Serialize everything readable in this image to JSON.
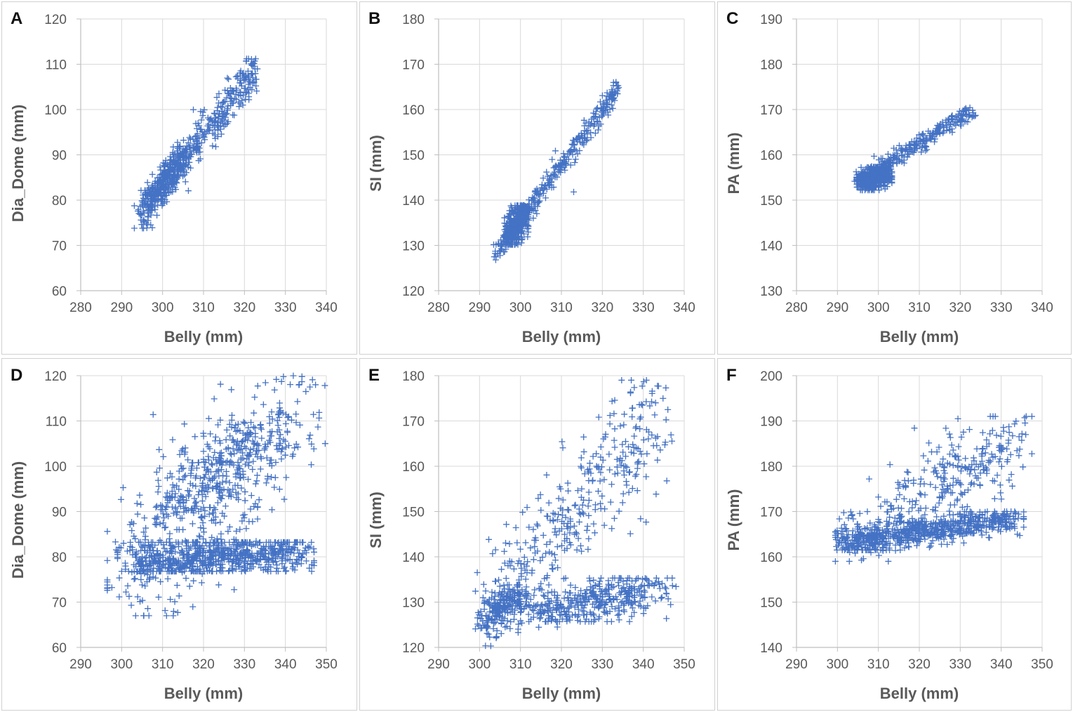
{
  "figure": {
    "marker": "+",
    "marker_color": "#4472C4",
    "grid_color": "#d9d9d9",
    "axis_color": "#bfbfbf"
  },
  "chart_data": [
    {
      "panel": "A",
      "type": "scatter",
      "xlabel": "Belly (mm)",
      "ylabel": "Dia_Dome (mm)",
      "xlim": [
        280,
        340
      ],
      "ylim": [
        60,
        120
      ],
      "xticks": [
        280,
        290,
        300,
        310,
        320,
        330,
        340
      ],
      "yticks": [
        60,
        70,
        80,
        90,
        100,
        110,
        120
      ],
      "clusters": [
        {
          "x0": 294,
          "y0": 76,
          "x1": 323,
          "y1": 109,
          "n": 380,
          "sx": 0.9,
          "sy": 2.2
        },
        {
          "x0": 296,
          "y0": 79,
          "x1": 305,
          "y1": 90,
          "n": 280,
          "sx": 0.8,
          "sy": 1.8
        }
      ],
      "points": [
        [
          313,
          91.8
        ]
      ]
    },
    {
      "panel": "B",
      "type": "scatter",
      "xlabel": "Belly (mm)",
      "ylabel": "SI (mm)",
      "xlim": [
        280,
        340
      ],
      "ylim": [
        120,
        180
      ],
      "xticks": [
        280,
        290,
        300,
        310,
        320,
        330,
        340
      ],
      "yticks": [
        120,
        130,
        140,
        150,
        160,
        170,
        180
      ],
      "clusters": [
        {
          "x0": 294,
          "y0": 128,
          "x1": 324,
          "y1": 165,
          "n": 330,
          "sx": 0.6,
          "sy": 1.2
        },
        {
          "x0": 297,
          "y0": 132,
          "x1": 301,
          "y1": 137,
          "n": 380,
          "sx": 0.9,
          "sy": 1.8
        }
      ],
      "points": [
        [
          313,
          141.8
        ]
      ]
    },
    {
      "panel": "C",
      "type": "scatter",
      "xlabel": "Belly (mm)",
      "ylabel": "PA (mm)",
      "xlim": [
        280,
        340
      ],
      "ylim": [
        130,
        190
      ],
      "xticks": [
        280,
        290,
        300,
        310,
        320,
        330,
        340
      ],
      "yticks": [
        130,
        140,
        150,
        160,
        170,
        180,
        190
      ],
      "clusters": [
        {
          "x0": 295,
          "y0": 154,
          "x1": 323,
          "y1": 170,
          "n": 300,
          "sx": 0.8,
          "sy": 0.9
        },
        {
          "x0": 296,
          "y0": 153.5,
          "x1": 302,
          "y1": 156,
          "n": 350,
          "sx": 1.3,
          "sy": 1.3
        }
      ],
      "points": []
    },
    {
      "panel": "D",
      "type": "scatter",
      "xlabel": "Belly (mm)",
      "ylabel": "Dia_Dome (mm)",
      "xlim": [
        290,
        350
      ],
      "ylim": [
        60,
        120
      ],
      "xticks": [
        290,
        300,
        310,
        320,
        330,
        340,
        350
      ],
      "yticks": [
        60,
        70,
        80,
        90,
        100,
        110,
        120
      ],
      "clusters": [
        {
          "x0": 301,
          "y0": 75,
          "x1": 346,
          "y1": 116,
          "n": 420,
          "sx": 4.5,
          "sy": 8
        },
        {
          "x0": 303,
          "y0": 79,
          "x1": 343,
          "y1": 81,
          "n": 700,
          "sx": 4,
          "sy": 2.2
        },
        {
          "x0": 312,
          "y0": 90,
          "x1": 335,
          "y1": 108,
          "n": 260,
          "sx": 3.5,
          "sy": 4
        }
      ],
      "points": [
        [
          346,
          117.5
        ],
        [
          345,
          116.5
        ],
        [
          305,
          73.8
        ]
      ]
    },
    {
      "panel": "E",
      "type": "scatter",
      "xlabel": "Belly (mm)",
      "ylabel": "SI (mm)",
      "xlim": [
        290,
        350
      ],
      "ylim": [
        120,
        180
      ],
      "xticks": [
        290,
        300,
        310,
        320,
        330,
        340,
        350
      ],
      "yticks": [
        120,
        130,
        140,
        150,
        160,
        170,
        180
      ],
      "clusters": [
        {
          "x0": 301,
          "y0": 126,
          "x1": 345,
          "y1": 172,
          "n": 380,
          "sx": 2,
          "sy": 7
        },
        {
          "x0": 315,
          "y0": 128,
          "x1": 343,
          "y1": 133,
          "n": 380,
          "sx": 5,
          "sy": 2.3
        },
        {
          "x0": 301,
          "y0": 126,
          "x1": 310,
          "y1": 132,
          "n": 180,
          "sx": 1.5,
          "sy": 1.8
        }
      ],
      "points": [
        [
          346,
          172.5
        ],
        [
          343,
          174
        ],
        [
          319,
          124.5
        ]
      ]
    },
    {
      "panel": "F",
      "type": "scatter",
      "xlabel": "Belly (mm)",
      "ylabel": "PA (mm)",
      "xlim": [
        290,
        350
      ],
      "ylim": [
        140,
        200
      ],
      "xticks": [
        290,
        300,
        310,
        320,
        330,
        340,
        350
      ],
      "yticks": [
        140,
        150,
        160,
        170,
        180,
        190,
        200
      ],
      "clusters": [
        {
          "x0": 302,
          "y0": 163,
          "x1": 345,
          "y1": 187,
          "n": 320,
          "sx": 2.5,
          "sy": 4
        },
        {
          "x0": 302,
          "y0": 163,
          "x1": 343,
          "y1": 168.5,
          "n": 650,
          "sx": 2.5,
          "sy": 1.5
        }
      ],
      "points": [
        [
          346,
          187
        ],
        [
          303,
          161
        ]
      ]
    }
  ]
}
